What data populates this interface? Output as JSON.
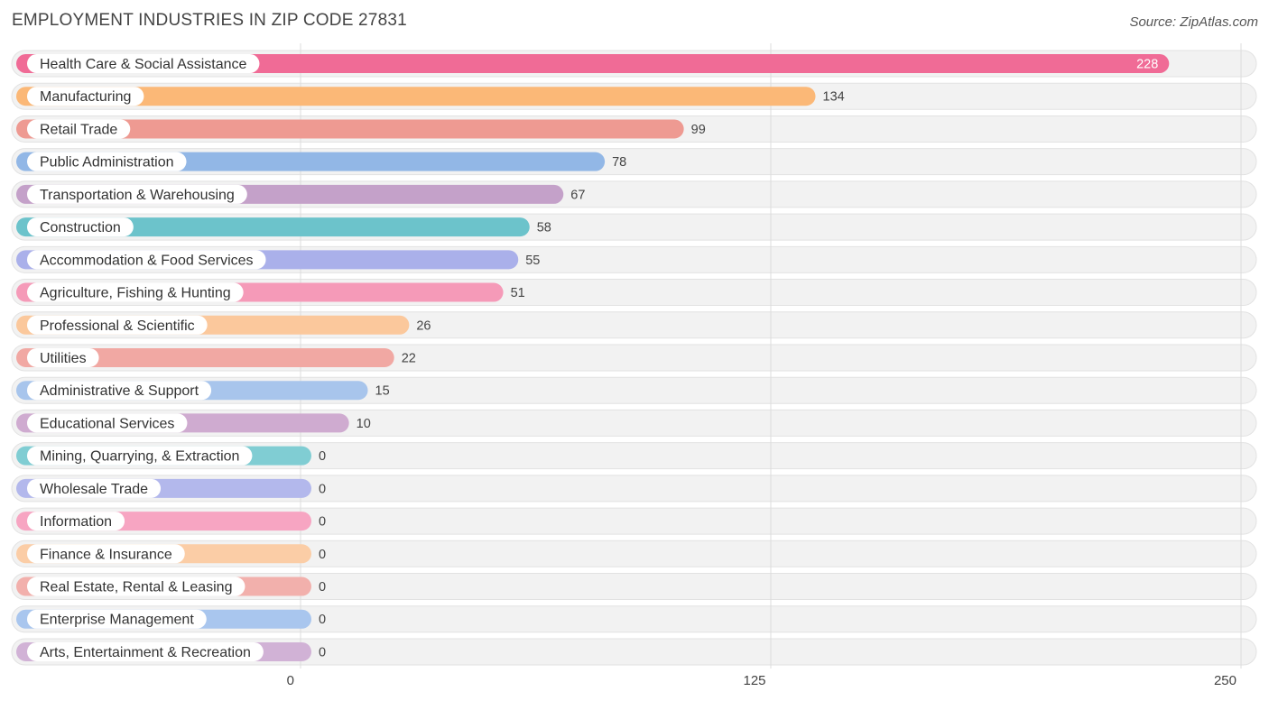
{
  "header": {
    "title": "EMPLOYMENT INDUSTRIES IN ZIP CODE 27831",
    "source": "Source: ZipAtlas.com"
  },
  "chart_data": {
    "type": "bar",
    "orientation": "horizontal",
    "title": "EMPLOYMENT INDUSTRIES IN ZIP CODE 27831",
    "xlabel": "",
    "ylabel": "",
    "xlim": [
      0,
      250
    ],
    "xticks": [
      0,
      125,
      250
    ],
    "grid": true,
    "categories": [
      "Health Care & Social Assistance",
      "Manufacturing",
      "Retail Trade",
      "Public Administration",
      "Transportation & Warehousing",
      "Construction",
      "Accommodation & Food Services",
      "Agriculture, Fishing & Hunting",
      "Professional & Scientific",
      "Utilities",
      "Administrative & Support",
      "Educational Services",
      "Mining, Quarrying, & Extraction",
      "Wholesale Trade",
      "Information",
      "Finance & Insurance",
      "Real Estate, Rental & Leasing",
      "Enterprise Management",
      "Arts, Entertainment & Recreation"
    ],
    "values": [
      228,
      134,
      99,
      78,
      67,
      58,
      55,
      51,
      26,
      22,
      15,
      10,
      0,
      0,
      0,
      0,
      0,
      0,
      0
    ],
    "colors": [
      "#f06b96",
      "#fbb877",
      "#ee9a92",
      "#92b7e6",
      "#c4a1c9",
      "#6cc3cb",
      "#aab0ea",
      "#f59ab8",
      "#fbc89c",
      "#f1a8a3",
      "#a8c5ec",
      "#cfabd0",
      "#80cdd3",
      "#b3b8ec",
      "#f7a5c2",
      "#fbcda6",
      "#f2b0ac",
      "#a9c6ee",
      "#d1b2d6"
    ]
  }
}
